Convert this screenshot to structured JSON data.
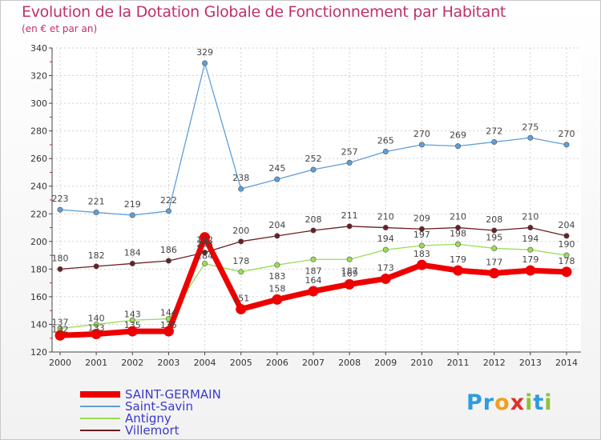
{
  "title": "Evolution de la Dotation Globale de Fonctionnement par Habitant",
  "subtitle": "(en € et par an)",
  "logo": {
    "letters": [
      "P",
      "r",
      "o",
      "x",
      "i",
      "t",
      "i"
    ],
    "colors": [
      "#2f9be0",
      "#2f9be0",
      "#f0a020",
      "#e0302a",
      "#8cc23a",
      "#2f9be0",
      "#8cc23a"
    ]
  },
  "chart_data": {
    "type": "line",
    "x": [
      "2000",
      "2001",
      "2002",
      "2003",
      "2004",
      "2005",
      "2006",
      "2007",
      "2008",
      "2009",
      "2010",
      "2011",
      "2012",
      "2013",
      "2014"
    ],
    "ylim": [
      120,
      340
    ],
    "yticks": [
      "120",
      "140",
      "160",
      "180",
      "200",
      "220",
      "240",
      "260",
      "280",
      "300",
      "320",
      "340"
    ],
    "grid": true,
    "legend_position": "bottom-left",
    "series": [
      {
        "name": "SAINT-GERMAIN",
        "color": "#ee0000",
        "values": [
          132,
          133,
          135,
          135,
          203,
          151,
          158,
          164,
          169,
          173,
          183,
          179,
          177,
          179,
          178
        ],
        "labels": [
          "132",
          "133",
          "135",
          "135",
          "203",
          "151",
          "158",
          "164",
          "169",
          "173",
          "183",
          "179",
          "177",
          "179",
          "178"
        ]
      },
      {
        "name": "Saint-Savin",
        "color": "#5e9fd8",
        "values": [
          223,
          221,
          219,
          222,
          329,
          238,
          245,
          252,
          257,
          265,
          270,
          269,
          272,
          275,
          270
        ],
        "labels": [
          "223",
          "221",
          "219",
          "222",
          "329",
          "238",
          "245",
          "252",
          "257",
          "265",
          "270",
          "269",
          "272",
          "275",
          "270"
        ]
      },
      {
        "name": "Antigny",
        "color": "#99dd55",
        "values": [
          137,
          140,
          143,
          144,
          184,
          178,
          183,
          187,
          187,
          194,
          197,
          198,
          195,
          194,
          190
        ],
        "labels": [
          "137",
          "140",
          "143",
          "144",
          "184",
          "178",
          "183",
          "187",
          "187",
          "194",
          "197",
          "198",
          "195",
          "194",
          "190"
        ]
      },
      {
        "name": "Villemort",
        "color": "#6a1f24",
        "values": [
          180,
          182,
          184,
          186,
          192,
          200,
          204,
          208,
          211,
          210,
          209,
          210,
          208,
          210,
          204
        ],
        "labels": [
          "180",
          "182",
          "184",
          "186",
          "192",
          "200",
          "204",
          "208",
          "211",
          "210",
          "209",
          "210",
          "208",
          "210",
          "204"
        ]
      }
    ]
  }
}
